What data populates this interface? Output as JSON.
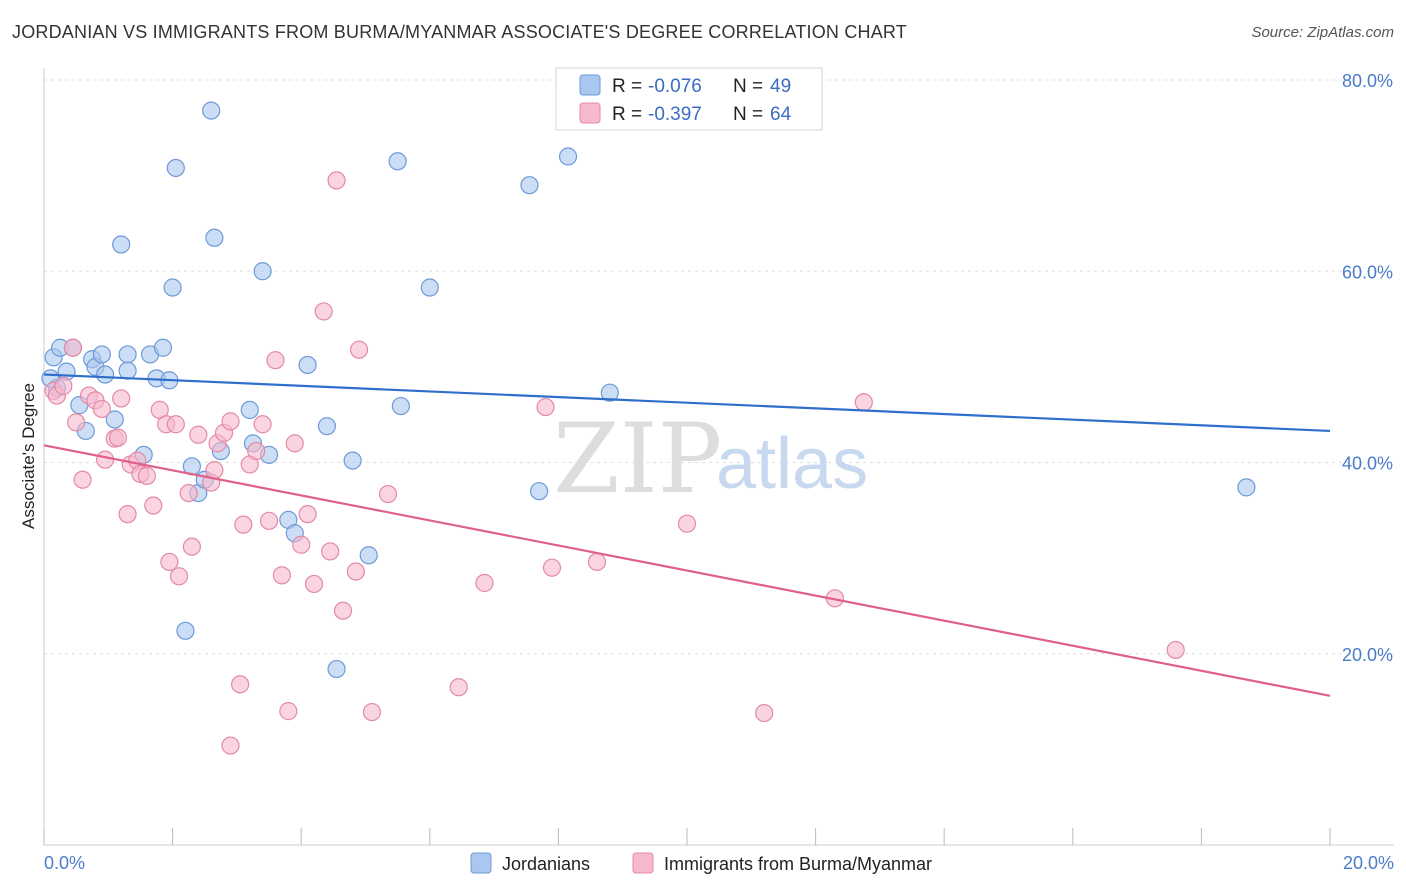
{
  "title": "JORDANIAN VS IMMIGRANTS FROM BURMA/MYANMAR ASSOCIATE'S DEGREE CORRELATION CHART",
  "source": "Source: ZipAtlas.com",
  "watermark": {
    "zip": "ZIP",
    "atlas": "atlas"
  },
  "colors": {
    "blue_fill": "#aac8ef",
    "blue_stroke": "#6d9ad8",
    "blue_line": "#2f6fcb",
    "pink_fill": "#f7b9cd",
    "pink_stroke": "#e389a8",
    "pink_line": "#e0608c",
    "tick_text": "#4a7cc9",
    "grid": "#dddddd"
  },
  "legend_top": [
    {
      "r_label": "R =",
      "r_value": "-0.076",
      "n_label": "N =",
      "n_value": "49"
    },
    {
      "r_label": "R =",
      "r_value": "-0.397",
      "n_label": "N =",
      "n_value": "64"
    }
  ],
  "chart_data": {
    "type": "scatter",
    "title": "JORDANIAN VS IMMIGRANTS FROM BURMA/MYANMAR ASSOCIATE'S DEGREE CORRELATION CHART",
    "xlabel": "",
    "ylabel": "Associate's Degree",
    "xlim": [
      0,
      20
    ],
    "ylim": [
      0,
      80
    ],
    "x_tick_labels": [
      "0.0%",
      "20.0%"
    ],
    "y_ticks": [
      20,
      40,
      60,
      80
    ],
    "y_tick_labels": [
      "20.0%",
      "40.0%",
      "60.0%",
      "80.0%"
    ],
    "grid": true,
    "legend_position": "top-center",
    "series": [
      {
        "name": "Jordanians",
        "r": -0.076,
        "n": 49,
        "trend": {
          "x0": 0,
          "y0": 49.2,
          "x1": 20,
          "y1": 43.3
        },
        "points": [
          [
            0.15,
            51.0
          ],
          [
            0.25,
            52.0
          ],
          [
            0.35,
            49.5
          ],
          [
            0.45,
            52.0
          ],
          [
            0.55,
            46.0
          ],
          [
            0.65,
            43.3
          ],
          [
            0.75,
            50.8
          ],
          [
            0.8,
            50.0
          ],
          [
            0.9,
            51.3
          ],
          [
            0.95,
            49.2
          ],
          [
            1.1,
            44.5
          ],
          [
            1.3,
            51.3
          ],
          [
            1.3,
            49.6
          ],
          [
            1.55,
            40.8
          ],
          [
            1.65,
            51.3
          ],
          [
            1.75,
            48.8
          ],
          [
            1.85,
            52.0
          ],
          [
            1.95,
            48.6
          ],
          [
            2.0,
            58.3
          ],
          [
            2.05,
            70.8
          ],
          [
            2.2,
            22.4
          ],
          [
            2.3,
            39.6
          ],
          [
            2.4,
            36.8
          ],
          [
            2.5,
            38.2
          ],
          [
            2.6,
            76.8
          ],
          [
            2.65,
            63.5
          ],
          [
            2.75,
            41.2
          ],
          [
            3.2,
            45.5
          ],
          [
            3.25,
            42.0
          ],
          [
            3.4,
            60.0
          ],
          [
            3.5,
            40.8
          ],
          [
            3.8,
            34.0
          ],
          [
            3.9,
            32.6
          ],
          [
            4.1,
            50.2
          ],
          [
            4.4,
            43.8
          ],
          [
            4.55,
            18.4
          ],
          [
            4.8,
            40.2
          ],
          [
            5.05,
            30.3
          ],
          [
            5.5,
            71.5
          ],
          [
            5.55,
            45.9
          ],
          [
            6.0,
            58.3
          ],
          [
            7.55,
            69.0
          ],
          [
            7.7,
            37.0
          ],
          [
            8.15,
            72.0
          ],
          [
            8.8,
            47.3
          ],
          [
            18.7,
            37.4
          ],
          [
            0.2,
            47.8
          ],
          [
            0.1,
            48.8
          ],
          [
            1.2,
            62.8
          ]
        ]
      },
      {
        "name": "Immigrants from Burma/Myanmar",
        "r": -0.397,
        "n": 64,
        "trend": {
          "x0": 0,
          "y0": 41.8,
          "x1": 20,
          "y1": 15.6
        },
        "points": [
          [
            0.15,
            47.5
          ],
          [
            0.2,
            47.0
          ],
          [
            0.3,
            48.0
          ],
          [
            0.45,
            52.0
          ],
          [
            0.5,
            44.2
          ],
          [
            0.6,
            38.2
          ],
          [
            0.7,
            47.0
          ],
          [
            0.8,
            46.5
          ],
          [
            0.9,
            45.6
          ],
          [
            0.95,
            40.3
          ],
          [
            1.1,
            42.5
          ],
          [
            1.15,
            42.6
          ],
          [
            1.2,
            46.7
          ],
          [
            1.3,
            34.6
          ],
          [
            1.35,
            39.8
          ],
          [
            1.45,
            40.2
          ],
          [
            1.5,
            38.8
          ],
          [
            1.6,
            38.6
          ],
          [
            1.7,
            35.5
          ],
          [
            1.8,
            45.5
          ],
          [
            1.9,
            44.0
          ],
          [
            1.95,
            29.6
          ],
          [
            2.05,
            44.0
          ],
          [
            2.1,
            28.1
          ],
          [
            2.25,
            36.8
          ],
          [
            2.3,
            31.2
          ],
          [
            2.4,
            42.9
          ],
          [
            2.6,
            37.9
          ],
          [
            2.65,
            39.2
          ],
          [
            2.7,
            42.0
          ],
          [
            2.8,
            43.1
          ],
          [
            2.9,
            44.3
          ],
          [
            3.05,
            16.8
          ],
          [
            3.1,
            33.5
          ],
          [
            3.2,
            39.8
          ],
          [
            3.3,
            41.2
          ],
          [
            3.4,
            44.0
          ],
          [
            3.5,
            33.9
          ],
          [
            3.6,
            50.7
          ],
          [
            3.7,
            28.2
          ],
          [
            3.8,
            14.0
          ],
          [
            3.9,
            42.0
          ],
          [
            4.0,
            31.4
          ],
          [
            4.1,
            34.6
          ],
          [
            4.2,
            27.3
          ],
          [
            4.35,
            55.8
          ],
          [
            4.45,
            30.7
          ],
          [
            4.55,
            69.5
          ],
          [
            4.65,
            24.5
          ],
          [
            4.85,
            28.6
          ],
          [
            4.9,
            51.8
          ],
          [
            5.1,
            13.9
          ],
          [
            5.35,
            36.7
          ],
          [
            6.45,
            16.5
          ],
          [
            6.85,
            27.4
          ],
          [
            7.8,
            45.8
          ],
          [
            7.9,
            29.0
          ],
          [
            8.6,
            29.6
          ],
          [
            10.0,
            33.6
          ],
          [
            12.3,
            25.8
          ],
          [
            12.75,
            46.3
          ],
          [
            17.6,
            20.4
          ],
          [
            11.2,
            13.8
          ],
          [
            2.9,
            10.4
          ]
        ]
      }
    ]
  },
  "bottom_legend": [
    {
      "label": "Jordanians"
    },
    {
      "label": "Immigrants from Burma/Myanmar"
    }
  ]
}
